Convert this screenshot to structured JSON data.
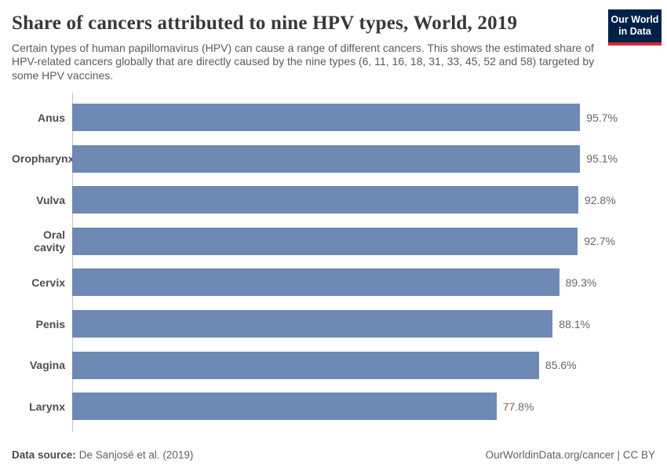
{
  "header": {
    "title": "Share of cancers attributed to nine HPV types, World, 2019",
    "subtitle": "Certain types of human papillomavirus (HPV) can cause a range of different cancers. This shows the estimated share of HPV-related cancers globally that are directly caused by the nine types (6, 11, 16, 18, 31, 33, 45, 52 and 58) targeted by some HPV vaccines.",
    "logo": {
      "line1": "Our World",
      "line2": "in Data"
    }
  },
  "chart_data": {
    "type": "bar",
    "orientation": "horizontal",
    "title": "Share of cancers attributed to nine HPV types, World, 2019",
    "categories": [
      "Anus",
      "Oropharynx",
      "Vulva",
      "Oral cavity",
      "Cervix",
      "Penis",
      "Vagina",
      "Larynx"
    ],
    "values": [
      95.7,
      95.1,
      92.8,
      92.7,
      89.3,
      88.1,
      85.6,
      77.8
    ],
    "value_labels": [
      "95.7%",
      "95.1%",
      "92.8%",
      "92.7%",
      "89.3%",
      "88.1%",
      "85.6%",
      "77.8%"
    ],
    "unit": "%",
    "xlim": [
      0,
      100
    ],
    "grid": false,
    "legend": "none",
    "bar_color": "#6e89b4"
  },
  "colors": {
    "bar": "#6e89b4",
    "axis_line": "#c4c4c4",
    "logo_bg": "#002147",
    "logo_accent": "#d12b3a"
  },
  "footer": {
    "source_label": "Data source:",
    "source_value": "De Sanjosé et al. (2019)",
    "credit": "OurWorldinData.org/cancer | CC BY"
  }
}
